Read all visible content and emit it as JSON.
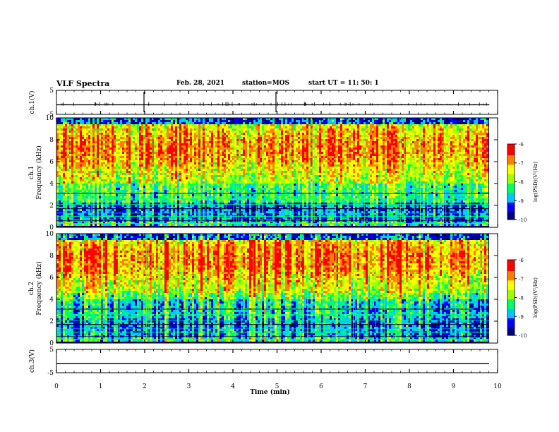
{
  "header": {
    "title": "VLF Spectra",
    "date": "Feb. 28, 2021",
    "station": "station=MOS",
    "start": "start  UT =   11: 50: 1"
  },
  "chart_data": [
    {
      "type": "line",
      "panel": "ch1-voltage",
      "ylabel": "ch.1(V)",
      "ylim": [
        -5,
        5
      ],
      "y_ticks": [
        "5",
        "-5"
      ],
      "series": [
        {
          "values_description_free": true,
          "level": -1
        }
      ]
    },
    {
      "type": "heatmap",
      "panel": "ch1-spectrogram",
      "ylabel": "ch.1\nFrequency (kHz)",
      "ylim": [
        0,
        10
      ],
      "y_ticks": [
        "0",
        "2",
        "4",
        "6",
        "8",
        "10"
      ],
      "colorbar": {
        "label": "log(PSD)(V²/Hz)",
        "ticks": [
          "-6",
          "-7",
          "-8",
          "-9",
          "-10"
        ],
        "range": [
          -10,
          -6
        ]
      }
    },
    {
      "type": "heatmap",
      "panel": "ch2-spectrogram",
      "ylabel": "ch.2\nFrequency (kHz)",
      "ylim": [
        0,
        10
      ],
      "y_ticks": [
        "0",
        "2",
        "4",
        "6",
        "8",
        "10"
      ],
      "colorbar": {
        "label": "log(PSD)(V²/Hz)",
        "ticks": [
          "-6",
          "-7",
          "-8",
          "-9",
          "-10"
        ],
        "range": [
          -10,
          -6
        ]
      }
    },
    {
      "type": "line",
      "panel": "ch3-voltage",
      "ylabel": "ch.3(V)",
      "ylim": [
        -5,
        5
      ],
      "y_ticks": [
        "5",
        "-5"
      ],
      "series": [
        {
          "level": -1
        }
      ]
    }
  ],
  "xaxis": {
    "label": "Time  (min)",
    "range": [
      0,
      10
    ],
    "ticks": [
      "0",
      "1",
      "2",
      "3",
      "4",
      "5",
      "6",
      "7",
      "8",
      "9",
      "10"
    ]
  },
  "colors": {
    "scale": [
      "#00007a",
      "#0000ff",
      "#00c8ff",
      "#00ff60",
      "#a0ff00",
      "#ffff00",
      "#ff8000",
      "#ff0000"
    ]
  }
}
